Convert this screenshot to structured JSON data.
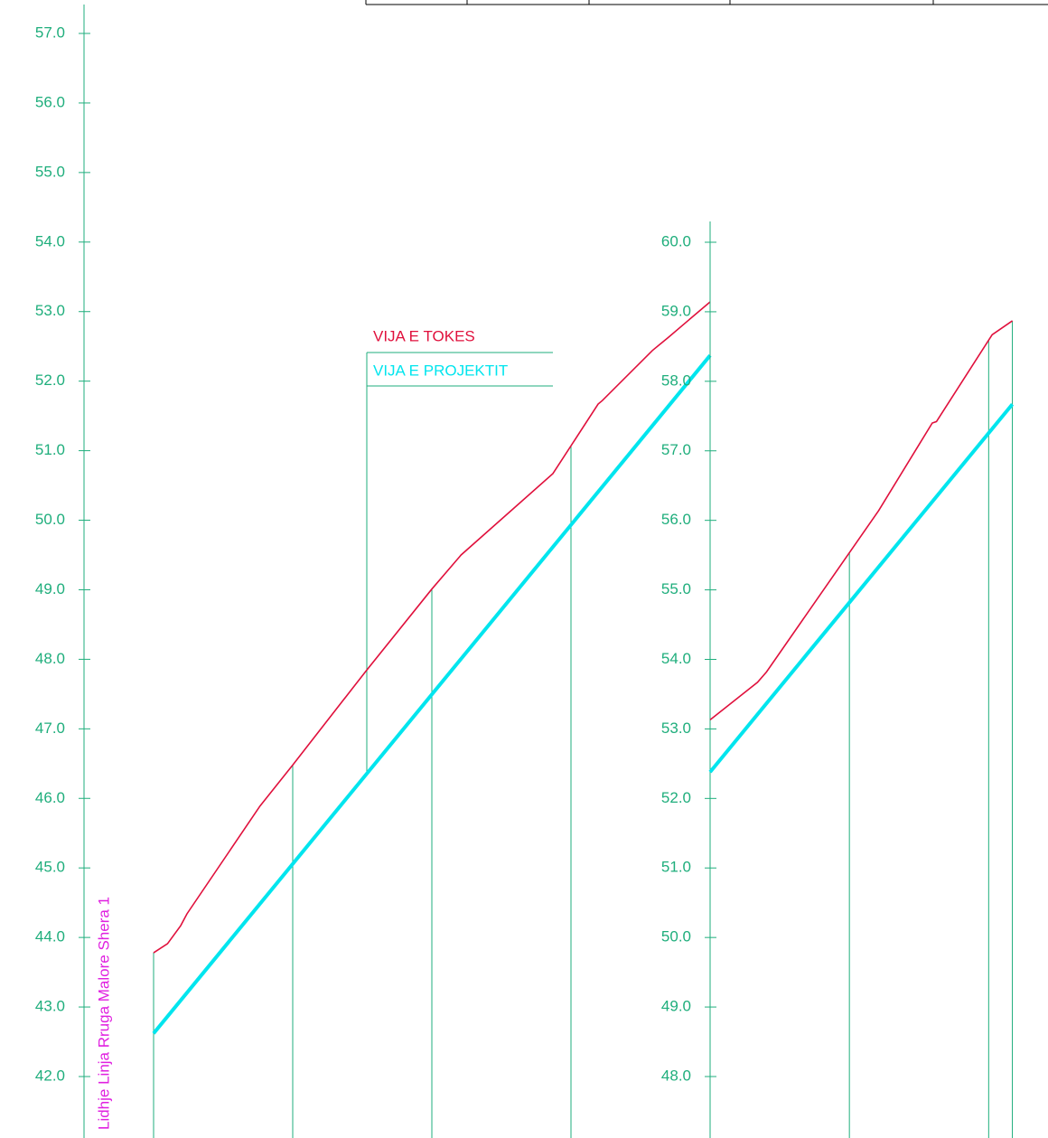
{
  "chart_data": [
    {
      "type": "line",
      "xlim": [
        -10,
        80
      ],
      "ylim": [
        42,
        57
      ],
      "yticks": [
        {
          "value": 42,
          "label": "42.0"
        },
        {
          "value": 43,
          "label": "43.0"
        },
        {
          "value": 44,
          "label": "44.0"
        },
        {
          "value": 45,
          "label": "45.0"
        },
        {
          "value": 46,
          "label": "46.0"
        },
        {
          "value": 47,
          "label": "47.0"
        },
        {
          "value": 48,
          "label": "48.0"
        },
        {
          "value": 49,
          "label": "49.0"
        },
        {
          "value": 50,
          "label": "50.0"
        },
        {
          "value": 51,
          "label": "51.0"
        },
        {
          "value": 52,
          "label": "52.0"
        },
        {
          "value": 53,
          "label": "53.0"
        },
        {
          "value": 54,
          "label": "54.0"
        },
        {
          "value": 55,
          "label": "55.0"
        },
        {
          "value": 56,
          "label": "56.0"
        },
        {
          "value": 57,
          "label": "57.0"
        }
      ],
      "stations": [
        0,
        20,
        40,
        60,
        80
      ],
      "annotation": "Lidhje Linja Rruga Malore Shera 1",
      "series": [
        {
          "name": "VIJA E TOKES",
          "color": "#e0103c",
          "x": [
            0,
            2,
            3.9,
            4.8,
            15.3,
            20,
            30.6,
            40,
            44.2,
            57.4,
            63.9,
            64.5,
            71.7,
            74,
            80
          ],
          "values": [
            43.78,
            43.91,
            44.17,
            44.34,
            45.89,
            46.48,
            47.84,
            49.01,
            49.5,
            50.67,
            51.67,
            51.72,
            52.44,
            52.63,
            53.14
          ]
        },
        {
          "name": "VIJA E PROJEKTIT",
          "color": "#00e5ee",
          "x": [
            0,
            80
          ],
          "values": [
            42.62,
            52.37
          ]
        }
      ]
    },
    {
      "type": "line",
      "xlim": [
        0,
        48
      ],
      "ylim": [
        48,
        60
      ],
      "yticks": [
        {
          "value": 48,
          "label": "48.0"
        },
        {
          "value": 49,
          "label": "49.0"
        },
        {
          "value": 50,
          "label": "50.0"
        },
        {
          "value": 51,
          "label": "51.0"
        },
        {
          "value": 52,
          "label": "52.0"
        },
        {
          "value": 53,
          "label": "53.0"
        },
        {
          "value": 54,
          "label": "54.0"
        },
        {
          "value": 55,
          "label": "55.0"
        },
        {
          "value": 56,
          "label": "56.0"
        },
        {
          "value": 57,
          "label": "57.0"
        },
        {
          "value": 58,
          "label": "58.0"
        },
        {
          "value": 59,
          "label": "59.0"
        },
        {
          "value": 60,
          "label": "60.0"
        }
      ],
      "stations": [
        20,
        40,
        43.4
      ],
      "series": [
        {
          "color": "#e0103c",
          "x": [
            0,
            6.8,
            8.1,
            24.2,
            31.9,
            32.5,
            40.5,
            43.4
          ],
          "values": [
            53.13,
            53.67,
            53.82,
            56.14,
            57.4,
            57.42,
            58.67,
            58.87
          ]
        },
        {
          "color": "#00e5ee",
          "x": [
            0,
            43.4
          ],
          "values": [
            52.38,
            57.67
          ]
        }
      ]
    }
  ]
}
